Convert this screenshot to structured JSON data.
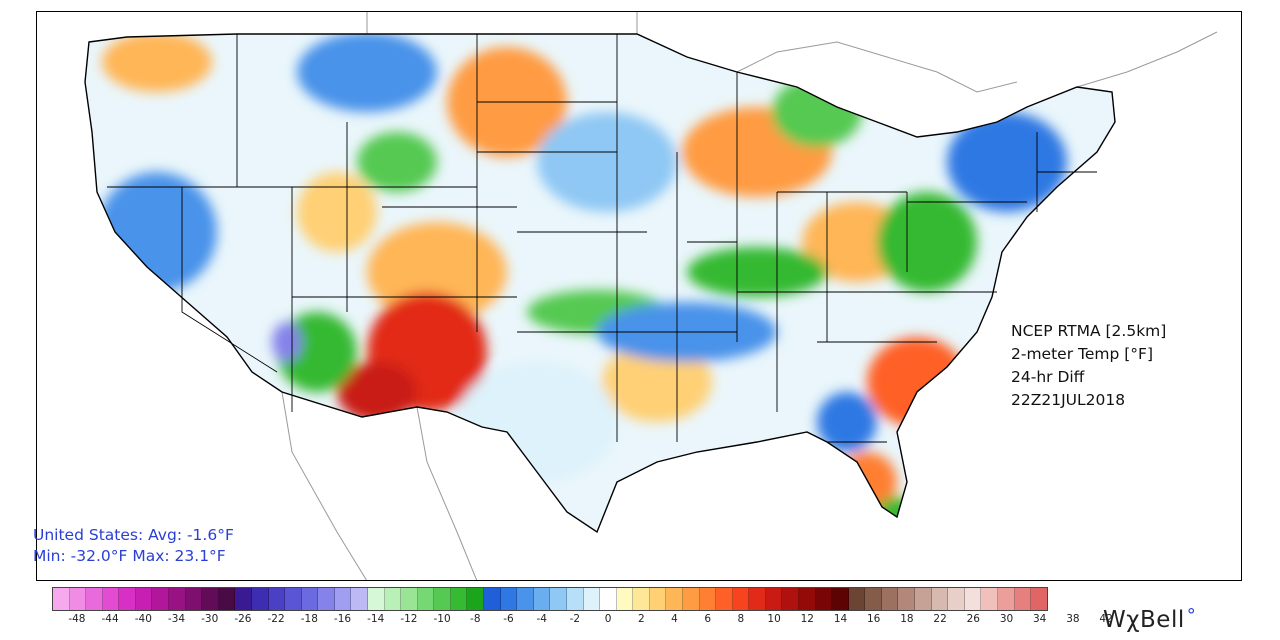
{
  "map": {
    "title_lines": [
      "NCEP RTMA [2.5km]",
      "2-meter Temp [°F]",
      "24-hr Diff",
      "22Z21JUL2018"
    ],
    "stats": {
      "avg_line": "United States: Avg:  -1.6°F",
      "minmax_line": "Min: -32.0°F Max:  23.1°F"
    },
    "legend": {
      "ticks": [
        "-48",
        "-44",
        "-40",
        "-34",
        "-30",
        "-26",
        "-22",
        "-18",
        "-16",
        "-14",
        "-12",
        "-10",
        "-8",
        "-6",
        "-4",
        "-2",
        "0",
        "2",
        "4",
        "6",
        "8",
        "10",
        "12",
        "14",
        "16",
        "18",
        "22",
        "26",
        "30",
        "34",
        "38",
        "42"
      ],
      "colors": [
        "#f6a9ec",
        "#f08ce4",
        "#e96bdb",
        "#e24bd2",
        "#d82fc5",
        "#c71fb1",
        "#b2179b",
        "#991284",
        "#7e0f6e",
        "#620c58",
        "#4a0a46",
        "#3a1a93",
        "#3d2db0",
        "#4a40c4",
        "#5a55d4",
        "#6b6ae0",
        "#8582e9",
        "#a09ef0",
        "#bcb9f5",
        "#d6f8d6",
        "#b9f0b7",
        "#99e595",
        "#76d872",
        "#55c951",
        "#36b933",
        "#1aa51a",
        "#1f5fd8",
        "#2f78e3",
        "#4a93ea",
        "#6aaef0",
        "#8fc8f4",
        "#b7e0f8",
        "#ddf2fb",
        "#ffffff",
        "#fffac0",
        "#ffe798",
        "#ffd074",
        "#ffb656",
        "#ff9b42",
        "#ff7f33",
        "#ff6028",
        "#f74320",
        "#e22a19",
        "#c91a13",
        "#ae110e",
        "#930a09",
        "#790506",
        "#5e0303",
        "#6b4434",
        "#855b49",
        "#9c7160",
        "#b2887a",
        "#c6a196",
        "#d8b9b0",
        "#e8cfc8",
        "#f3dfdb",
        "#f2c0bc",
        "#ec9e9b",
        "#e6807e",
        "#e06666"
      ]
    },
    "logo": {
      "text": "WχBell",
      "mark": "°"
    }
  }
}
